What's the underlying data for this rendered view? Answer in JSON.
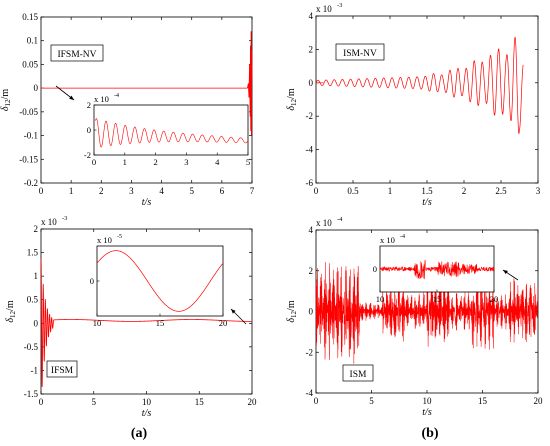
{
  "figure": {
    "caption_a": "(a)",
    "caption_b": "(b)",
    "colors": {
      "curve": "#ff0000",
      "axis": "#000000",
      "zero_line": "#ff0000"
    }
  },
  "chart_data": [
    {
      "id": "a_top",
      "type": "line",
      "label": "IFSM-NV",
      "xlabel": "t/s",
      "ylabel_main": "δ",
      "ylabel_sub": "12",
      "ylabel_unit": "/m",
      "xlim": [
        0,
        7
      ],
      "ylim": [
        -0.2,
        0.15
      ],
      "xticks": [
        0,
        1,
        2,
        3,
        4,
        5,
        6,
        7
      ],
      "xtick_labels": [
        "0",
        "1",
        "2",
        "3",
        "4",
        "5",
        "6",
        "7"
      ],
      "yticks": [
        -0.2,
        -0.15,
        -0.1,
        -0.05,
        0,
        0.05,
        0.1,
        0.15
      ],
      "ytick_labels": [
        "-0.2",
        "-0.15",
        "-0.1",
        "-0.05",
        "0",
        "0.05",
        "0.1",
        "0.15"
      ],
      "exponent_label": "",
      "series": [
        {
          "x": [
            0,
            1,
            2,
            3,
            4,
            5,
            6,
            6.85,
            6.88,
            6.9,
            6.92,
            6.94,
            6.95,
            6.96,
            6.97,
            6.98,
            6.99,
            7
          ],
          "y": [
            0,
            0,
            0,
            0,
            0,
            0,
            0,
            0,
            0.01,
            -0.02,
            0.05,
            -0.06,
            0.09,
            -0.09,
            0.12,
            -0.1,
            0.08,
            0.02
          ]
        }
      ],
      "inset": {
        "xlim": [
          0,
          5
        ],
        "ylim": [
          -2,
          2
        ],
        "xticks": [
          0,
          1,
          2,
          3,
          4,
          5
        ],
        "xtick_labels": [
          "0",
          "1",
          "2",
          "3",
          "4",
          "5"
        ],
        "yticks": [
          -2,
          0,
          2
        ],
        "ytick_labels": [
          "-2",
          "0",
          "2"
        ],
        "exponent_label": "x 10",
        "exponent_power": "-4"
      }
    },
    {
      "id": "b_top",
      "type": "line",
      "label": "ISM-NV",
      "xlabel": "t/s",
      "ylabel_main": "δ",
      "ylabel_sub": "12",
      "ylabel_unit": "/m",
      "xlim": [
        0,
        3
      ],
      "ylim": [
        -6,
        4
      ],
      "xticks": [
        0,
        0.5,
        1,
        1.5,
        2,
        2.5,
        3
      ],
      "xtick_labels": [
        "0",
        "0.5",
        "1",
        "1.5",
        "2",
        "2.5",
        "3"
      ],
      "yticks": [
        -6,
        -4,
        -2,
        0,
        2,
        4
      ],
      "ytick_labels": [
        "-6",
        "-4",
        "-2",
        "0",
        "2",
        "4"
      ],
      "exponent_label": "x 10",
      "exponent_power": "-3"
    },
    {
      "id": "a_bottom",
      "type": "line",
      "label": "IFSM",
      "xlabel": "t/s",
      "ylabel_main": "δ",
      "ylabel_sub": "12",
      "ylabel_unit": "/m",
      "xlim": [
        0,
        20
      ],
      "ylim": [
        -1.5,
        2
      ],
      "xticks": [
        0,
        5,
        10,
        15,
        20
      ],
      "xtick_labels": [
        "0",
        "5",
        "10",
        "15",
        "20"
      ],
      "yticks": [
        -1.5,
        -1,
        -0.5,
        0,
        0.5,
        1,
        1.5,
        2
      ],
      "ytick_labels": [
        "-1.5",
        "-1",
        "-0.5",
        "0",
        "0.5",
        "1",
        "1.5",
        "2"
      ],
      "exponent_label": "x 10",
      "exponent_power": "-3",
      "inset": {
        "xlim": [
          10,
          20
        ],
        "ylim": [
          -3,
          3
        ],
        "xticks": [
          10,
          15,
          20
        ],
        "xtick_labels": [
          "10",
          "15",
          "20"
        ],
        "yticks": [
          0
        ],
        "ytick_labels": [
          "0"
        ],
        "exponent_label": "x 10",
        "exponent_power": "-5"
      }
    },
    {
      "id": "b_bottom",
      "type": "line",
      "label": "ISM",
      "xlabel": "t/s",
      "ylabel_main": "δ",
      "ylabel_sub": "12",
      "ylabel_unit": "/m",
      "xlim": [
        0,
        20
      ],
      "ylim": [
        -4,
        4
      ],
      "xticks": [
        0,
        5,
        10,
        15,
        20
      ],
      "xtick_labels": [
        "0",
        "5",
        "10",
        "15",
        "20"
      ],
      "yticks": [
        -4,
        -2,
        0,
        2,
        4
      ],
      "ytick_labels": [
        "-4",
        "-2",
        "0",
        "2",
        "4"
      ],
      "exponent_label": "x 10",
      "exponent_power": "-4",
      "inset": {
        "xlim": [
          10,
          20
        ],
        "ylim": [
          -2,
          2
        ],
        "xticks": [
          10,
          15,
          20
        ],
        "xtick_labels": [
          "10",
          "15",
          "20"
        ],
        "yticks": [
          0
        ],
        "ytick_labels": [
          "0"
        ],
        "exponent_label": "x 10",
        "exponent_power": "-4"
      }
    }
  ]
}
